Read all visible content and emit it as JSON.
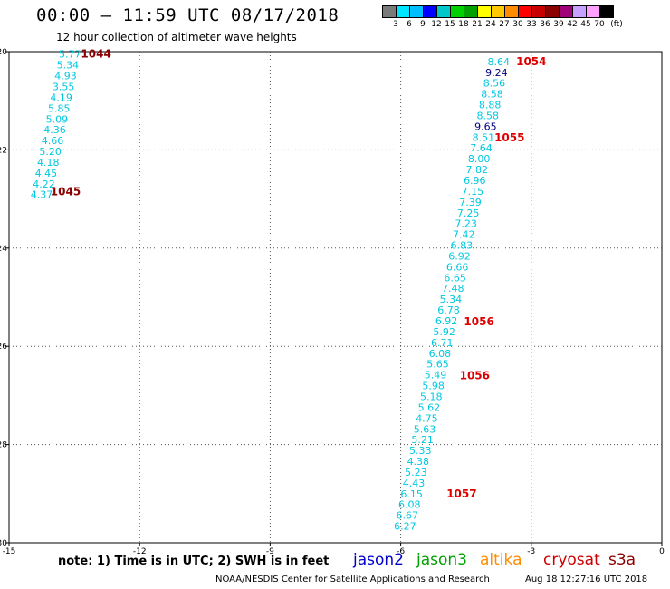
{
  "header": {
    "title": "00:00 – 11:59 UTC 08/17/2018",
    "subtitle": "12 hour collection of altimeter wave heights"
  },
  "colorbar": {
    "colors": [
      "#7a7a7a",
      "#00e5ff",
      "#00bfff",
      "#0000ff",
      "#00c8c8",
      "#00d000",
      "#00a000",
      "#ffff00",
      "#ffc800",
      "#ff8c00",
      "#ff0000",
      "#c80000",
      "#8b0000",
      "#a00078",
      "#c8a0ff",
      "#ffa0ff",
      "#000000"
    ],
    "labels": [
      "3",
      "6",
      "9",
      "12",
      "15",
      "18",
      "21",
      "24",
      "27",
      "30",
      "33",
      "36",
      "39",
      "42",
      "45",
      "70",
      "(ft)"
    ]
  },
  "chart_data": {
    "type": "scatter",
    "title": "",
    "xlabel": "",
    "ylabel": "",
    "xlim": [
      -15,
      0
    ],
    "ylim": [
      -30,
      -20
    ],
    "x_ticks": [
      "-15",
      "-12",
      "-9",
      "-6",
      "-3",
      "0"
    ],
    "y_ticks": [
      "-20",
      "-22",
      "-24",
      "-26",
      "-28",
      "-30"
    ],
    "grid": true,
    "label_color_cyan": "#00c8e0",
    "label_color_dark": "#000080",
    "annotation_color_dark": "#8b0000",
    "annotation_color_red": "#dd0000",
    "series": [
      {
        "points": [
          {
            "x": -13.6,
            "y": -20.05,
            "v": "5.77"
          },
          {
            "x": -13.65,
            "y": -20.27,
            "v": "5.34"
          },
          {
            "x": -13.7,
            "y": -20.49,
            "v": "4.93"
          },
          {
            "x": -13.75,
            "y": -20.71,
            "v": "3.55"
          },
          {
            "x": -13.8,
            "y": -20.93,
            "v": "4.19"
          },
          {
            "x": -13.85,
            "y": -21.15,
            "v": "5.85"
          },
          {
            "x": -13.9,
            "y": -21.37,
            "v": "5.09"
          },
          {
            "x": -13.95,
            "y": -21.59,
            "v": "4.36"
          },
          {
            "x": -14.0,
            "y": -21.81,
            "v": "4.66"
          },
          {
            "x": -14.05,
            "y": -22.03,
            "v": "5.20"
          },
          {
            "x": -14.1,
            "y": -22.25,
            "v": "4.18"
          },
          {
            "x": -14.15,
            "y": -22.47,
            "v": "4.45"
          },
          {
            "x": -14.2,
            "y": -22.69,
            "v": "4.22"
          },
          {
            "x": -14.25,
            "y": -22.91,
            "v": "4.37"
          }
        ]
      },
      {
        "points": [
          {
            "x": -3.75,
            "y": -20.2,
            "v": "8.64"
          },
          {
            "x": -3.8,
            "y": -20.42,
            "v": "9.24",
            "dark": true
          },
          {
            "x": -3.85,
            "y": -20.64,
            "v": "8.56"
          },
          {
            "x": -3.9,
            "y": -20.86,
            "v": "8.58"
          },
          {
            "x": -3.95,
            "y": -21.08,
            "v": "8.88"
          },
          {
            "x": -4.0,
            "y": -21.3,
            "v": "8.58"
          },
          {
            "x": -4.05,
            "y": -21.52,
            "v": "9.65",
            "dark": true
          },
          {
            "x": -4.1,
            "y": -21.74,
            "v": "8.51"
          },
          {
            "x": -4.15,
            "y": -21.96,
            "v": "7.64"
          },
          {
            "x": -4.2,
            "y": -22.18,
            "v": "8.00"
          },
          {
            "x": -4.25,
            "y": -22.4,
            "v": "7.82"
          },
          {
            "x": -4.3,
            "y": -22.62,
            "v": "6.96"
          },
          {
            "x": -4.35,
            "y": -22.84,
            "v": "7.15"
          },
          {
            "x": -4.4,
            "y": -23.06,
            "v": "7.39"
          },
          {
            "x": -4.45,
            "y": -23.28,
            "v": "7.25"
          },
          {
            "x": -4.5,
            "y": -23.5,
            "v": "7.23"
          },
          {
            "x": -4.55,
            "y": -23.72,
            "v": "7.42"
          },
          {
            "x": -4.6,
            "y": -23.94,
            "v": "6.83"
          },
          {
            "x": -4.65,
            "y": -24.16,
            "v": "6.92"
          },
          {
            "x": -4.7,
            "y": -24.38,
            "v": "6.66"
          },
          {
            "x": -4.75,
            "y": -24.6,
            "v": "6.65"
          },
          {
            "x": -4.8,
            "y": -24.82,
            "v": "7.48"
          },
          {
            "x": -4.85,
            "y": -25.04,
            "v": "5.34"
          },
          {
            "x": -4.9,
            "y": -25.26,
            "v": "6.78"
          },
          {
            "x": -4.95,
            "y": -25.48,
            "v": "6.92"
          },
          {
            "x": -5.0,
            "y": -25.7,
            "v": "5.92"
          },
          {
            "x": -5.05,
            "y": -25.92,
            "v": "6.71"
          },
          {
            "x": -5.1,
            "y": -26.14,
            "v": "6.08"
          },
          {
            "x": -5.15,
            "y": -26.36,
            "v": "5.65"
          },
          {
            "x": -5.2,
            "y": -26.58,
            "v": "5.49"
          },
          {
            "x": -5.25,
            "y": -26.8,
            "v": "5.98"
          },
          {
            "x": -5.3,
            "y": -27.02,
            "v": "5.18"
          },
          {
            "x": -5.35,
            "y": -27.24,
            "v": "5.62"
          },
          {
            "x": -5.4,
            "y": -27.46,
            "v": "4.75"
          },
          {
            "x": -5.45,
            "y": -27.68,
            "v": "5.63"
          },
          {
            "x": -5.5,
            "y": -27.9,
            "v": "5.21"
          },
          {
            "x": -5.55,
            "y": -28.12,
            "v": "5.33"
          },
          {
            "x": -5.6,
            "y": -28.34,
            "v": "4.38"
          },
          {
            "x": -5.65,
            "y": -28.56,
            "v": "5.23"
          },
          {
            "x": -5.7,
            "y": -28.78,
            "v": "4.43"
          },
          {
            "x": -5.75,
            "y": -29.0,
            "v": "6.15"
          },
          {
            "x": -5.8,
            "y": -29.22,
            "v": "6.08"
          },
          {
            "x": -5.85,
            "y": -29.44,
            "v": "6.67"
          },
          {
            "x": -5.9,
            "y": -29.66,
            "v": "6.27"
          }
        ]
      }
    ],
    "annotations": [
      {
        "text": "1044",
        "x": -13.0,
        "y": -20.05,
        "color": "dark"
      },
      {
        "text": "1045",
        "x": -13.7,
        "y": -22.85,
        "color": "dark"
      },
      {
        "text": "1054",
        "x": -3.0,
        "y": -20.2,
        "color": "red"
      },
      {
        "text": "1055",
        "x": -3.5,
        "y": -21.75,
        "color": "red"
      },
      {
        "text": "1056",
        "x": -4.2,
        "y": -25.5,
        "color": "red"
      },
      {
        "text": "1056",
        "x": -4.3,
        "y": -26.6,
        "color": "red"
      },
      {
        "text": "1057",
        "x": -4.6,
        "y": -29.0,
        "color": "red"
      }
    ]
  },
  "footer": {
    "note": "note: 1) Time is in UTC; 2) SWH is in feet",
    "legend": [
      {
        "label": "jason2",
        "color": "#0000cc"
      },
      {
        "label": "jason3",
        "color": "#00a000"
      },
      {
        "label": "altika",
        "color": "#ff8c00"
      },
      {
        "label": "cryosat",
        "color": "#cc0000"
      },
      {
        "label": "s3a",
        "color": "#8b0000"
      }
    ],
    "credit": "NOAA/NESDIS Center for Satellite Applications and Research",
    "timestamp": "Aug 18 12:27:16 UTC 2018"
  }
}
